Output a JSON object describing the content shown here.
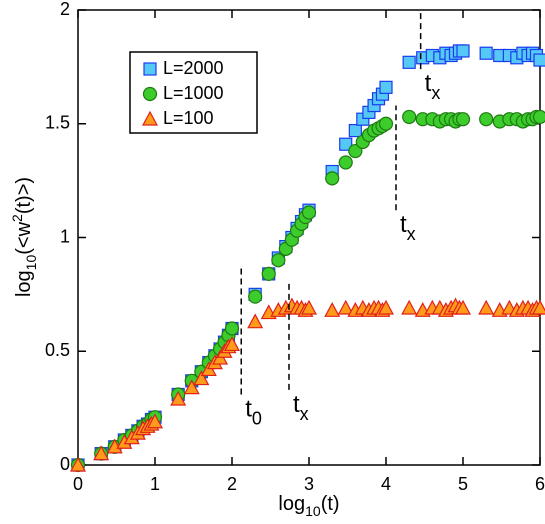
{
  "chart_data": {
    "type": "scatter",
    "xlabel": [
      "log",
      "10",
      "(t)"
    ],
    "ylabel": [
      "log",
      "10",
      "(<w",
      "2",
      "(t)>)"
    ],
    "x": [
      0,
      0.301,
      0.477,
      0.602,
      0.699,
      0.778,
      0.845,
      0.903,
      0.954,
      1,
      1.301,
      1.477,
      1.602,
      1.699,
      1.778,
      1.845,
      1.903,
      1.954,
      2,
      2.301,
      2.477,
      2.602,
      2.699,
      2.778,
      2.845,
      2.903,
      2.954,
      3,
      3.301,
      3.477,
      3.602,
      3.699,
      3.778,
      3.845,
      3.903,
      3.954,
      4,
      4.301,
      4.477,
      4.602,
      4.699,
      4.778,
      4.845,
      4.903,
      4.954,
      5,
      5.301,
      5.477,
      5.602,
      5.699,
      5.778,
      5.845,
      5.903,
      5.954,
      6
    ],
    "series": [
      {
        "name": "L=2000",
        "marker": "square",
        "color": "#55c8f5",
        "edgecolor": "#1a3cf0",
        "values": [
          0,
          0.05,
          0.08,
          0.11,
          0.13,
          0.15,
          0.17,
          0.18,
          0.2,
          0.21,
          0.31,
          0.37,
          0.41,
          0.45,
          0.48,
          0.51,
          0.54,
          0.57,
          0.6,
          0.75,
          0.84,
          0.91,
          0.96,
          1.0,
          1.04,
          1.07,
          1.1,
          1.12,
          1.29,
          1.41,
          1.47,
          1.52,
          1.55,
          1.58,
          1.61,
          1.63,
          1.66,
          1.77,
          1.79,
          1.8,
          1.79,
          1.81,
          1.8,
          1.81,
          1.82,
          1.82,
          1.81,
          1.8,
          1.8,
          1.79,
          1.81,
          1.8,
          1.81,
          1.8,
          1.78
        ]
      },
      {
        "name": "L=1000",
        "marker": "circle",
        "color": "#3ccc2c",
        "edgecolor": "#1f7a12",
        "values": [
          0,
          0.05,
          0.08,
          0.11,
          0.13,
          0.15,
          0.17,
          0.18,
          0.2,
          0.21,
          0.31,
          0.37,
          0.41,
          0.45,
          0.48,
          0.51,
          0.54,
          0.57,
          0.6,
          0.74,
          0.84,
          0.9,
          0.95,
          0.99,
          1.03,
          1.06,
          1.09,
          1.11,
          1.26,
          1.33,
          1.38,
          1.42,
          1.45,
          1.47,
          1.48,
          1.49,
          1.5,
          1.53,
          1.52,
          1.52,
          1.51,
          1.52,
          1.52,
          1.51,
          1.52,
          1.52,
          1.52,
          1.51,
          1.52,
          1.52,
          1.51,
          1.52,
          1.52,
          1.53,
          1.53
        ]
      },
      {
        "name": "L=100",
        "marker": "triangle",
        "color": "#ff9a1a",
        "edgecolor": "#e0201a",
        "values": [
          0,
          0.05,
          0.08,
          0.1,
          0.12,
          0.14,
          0.16,
          0.17,
          0.18,
          0.19,
          0.29,
          0.34,
          0.38,
          0.42,
          0.45,
          0.47,
          0.5,
          0.52,
          0.53,
          0.63,
          0.67,
          0.68,
          0.69,
          0.7,
          0.69,
          0.69,
          0.68,
          0.69,
          0.68,
          0.69,
          0.68,
          0.69,
          0.68,
          0.69,
          0.69,
          0.68,
          0.69,
          0.69,
          0.68,
          0.69,
          0.69,
          0.68,
          0.69,
          0.7,
          0.69,
          0.69,
          0.69,
          0.68,
          0.69,
          0.68,
          0.69,
          0.69,
          0.68,
          0.69,
          0.69
        ]
      }
    ],
    "annotations": [
      {
        "text": "t",
        "sub": "0",
        "x": 2.12,
        "y": [
          0.31,
          0.88
        ]
      },
      {
        "text": "t",
        "sub": "x",
        "x": 2.74,
        "y": [
          0.33,
          0.8
        ]
      },
      {
        "text": "t",
        "sub": "x",
        "x": 4.13,
        "y": [
          1.12,
          1.58
        ]
      },
      {
        "text": "t",
        "sub": "x",
        "x": 4.45,
        "y": [
          1.74,
          2
        ]
      }
    ],
    "xlim": [
      0,
      6
    ],
    "xticks": [
      0,
      1,
      2,
      3,
      4,
      5,
      6
    ],
    "ylim": [
      0,
      2
    ],
    "yticks": [
      0,
      0.5,
      1,
      1.5,
      2
    ],
    "legend": "upper left",
    "grid": false
  }
}
